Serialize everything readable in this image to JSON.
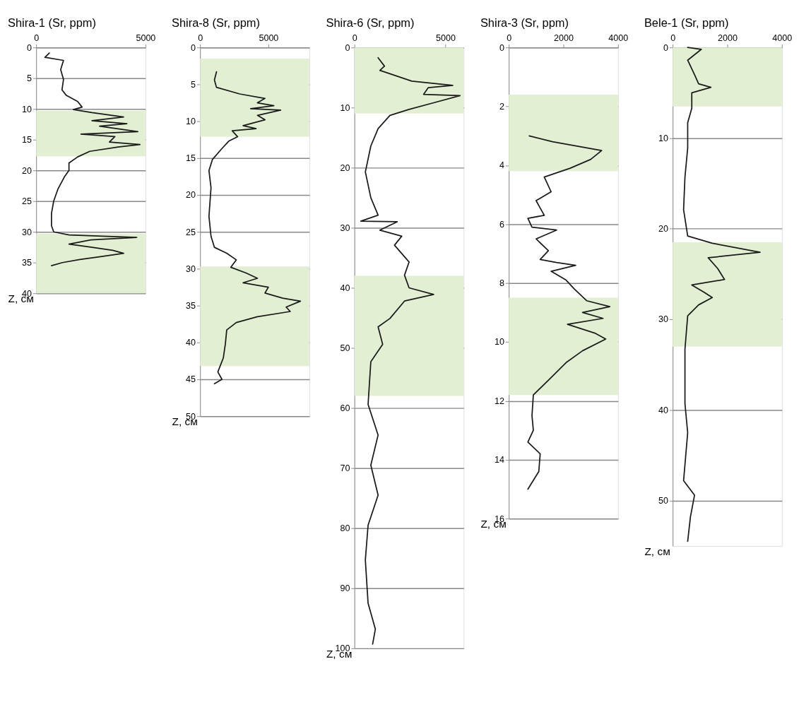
{
  "chart_data": [
    {
      "type": "line",
      "title": "Shira-1 (Sr, ppm)",
      "ylabel": "Z, см",
      "xlim": [
        0,
        5000
      ],
      "xticks": [
        0,
        5000
      ],
      "ylim": [
        40,
        0
      ],
      "yticks": [
        0,
        5,
        10,
        15,
        20,
        25,
        30,
        35,
        40
      ],
      "grid": "y",
      "bands": [
        {
          "axis": "y",
          "from": 10.3,
          "to": 17.7,
          "color": "#e2efd3"
        },
        {
          "axis": "y",
          "from": 30.3,
          "to": 40,
          "color": "#e2efd3"
        }
      ],
      "series": [
        {
          "color": "#1a1a1a",
          "x": [
            600,
            400,
            1250,
            1120,
            1250,
            1180,
            1380,
            1900,
            2100,
            1700,
            2550,
            4000,
            2550,
            4150,
            2900,
            4650,
            2050,
            3600,
            3350,
            4750,
            3750,
            2450,
            1900,
            1500,
            1500,
            1300,
            1000,
            800,
            700,
            700,
            800,
            1500,
            4600,
            2500,
            1500,
            2500,
            3500,
            4000,
            3000,
            2000,
            1200,
            700
          ],
          "values": [
            0.9,
            1.6,
            2.1,
            3.6,
            5.2,
            6.9,
            7.8,
            8.8,
            9.7,
            10.1,
            10.6,
            11.3,
            11.9,
            12.4,
            12.8,
            13.7,
            14.1,
            14.5,
            15.4,
            15.8,
            16.2,
            16.9,
            17.8,
            18.8,
            20,
            21,
            23,
            25,
            27,
            29,
            30,
            30.5,
            30.9,
            31.3,
            32,
            32.5,
            33,
            33.5,
            34,
            34.5,
            35,
            35.5
          ]
        }
      ]
    },
    {
      "type": "line",
      "title": "Shira-8 (Sr, ppm)",
      "ylabel": "Z, см",
      "xlim": [
        0,
        8000
      ],
      "xticks": [
        0,
        5000
      ],
      "ylim": [
        50,
        0
      ],
      "yticks": [
        0,
        5,
        10,
        15,
        20,
        25,
        30,
        35,
        40,
        45,
        50
      ],
      "grid": "y",
      "bands": [
        {
          "axis": "y",
          "from": 1.5,
          "to": 12.1,
          "color": "#e2efd3"
        },
        {
          "axis": "y",
          "from": 29.7,
          "to": 43.2,
          "color": "#e2efd3"
        }
      ],
      "series": [
        {
          "color": "#1a1a1a",
          "x": [
            1200,
            1050,
            1200,
            2900,
            4750,
            4200,
            5400,
            3700,
            5900,
            4200,
            4750,
            3150,
            4100,
            2350,
            2750,
            2100,
            1600,
            900,
            650,
            800,
            650,
            800,
            1050,
            1950,
            2650,
            2250,
            3400,
            4200,
            3150,
            5000,
            4750,
            6050,
            7350,
            6300,
            6600,
            4200,
            2650,
            1950,
            1850,
            1700,
            1300,
            1600,
            1050
          ],
          "values": [
            3.3,
            4.4,
            5.4,
            6.3,
            6.9,
            7.5,
            7.9,
            8.3,
            8.5,
            9.2,
            9.8,
            10.6,
            11,
            11.3,
            12.1,
            12.7,
            13.7,
            15.2,
            16.7,
            19,
            22.9,
            25.6,
            27.1,
            27.9,
            28.8,
            29.8,
            30.6,
            31.3,
            31.9,
            32.5,
            33.3,
            34,
            34.4,
            35.2,
            35.8,
            36.5,
            37.3,
            38.3,
            40.2,
            42.1,
            44,
            45,
            45.6
          ]
        }
      ]
    },
    {
      "type": "line",
      "title": "Shira-6 (Sr, ppm)",
      "ylabel": "Z, см",
      "xlim": [
        0,
        6000
      ],
      "xticks": [
        0,
        5000
      ],
      "ylim": [
        100,
        0
      ],
      "yticks": [
        0,
        10,
        20,
        30,
        40,
        50,
        60,
        70,
        80,
        90,
        100
      ],
      "grid": "y",
      "bands": [
        {
          "axis": "y",
          "from": 0,
          "to": 11,
          "color": "#e2efd3"
        },
        {
          "axis": "y",
          "from": 38,
          "to": 58,
          "color": "#e2efd3"
        }
      ],
      "series": [
        {
          "color": "#1a1a1a",
          "x": [
            1300,
            1650,
            1400,
            3150,
            5400,
            4050,
            3800,
            5800,
            4350,
            3000,
            1950,
            1300,
            900,
            600,
            900,
            1300,
            350,
            2350,
            1400,
            2600,
            2200,
            3000,
            2750,
            3000,
            4350,
            2750,
            1950,
            1300,
            1550,
            900,
            750,
            1300,
            900,
            1300,
            750,
            600,
            750,
            1150,
            1000
          ],
          "values": [
            1.7,
            3.1,
            3.8,
            5.6,
            6.3,
            6.7,
            7.8,
            8,
            9.2,
            10.3,
            11.3,
            13.5,
            16.4,
            20.7,
            25,
            27.9,
            28.9,
            29,
            30.4,
            31.4,
            32.9,
            35.7,
            37.9,
            40,
            41.1,
            42.2,
            45.1,
            46.5,
            49.4,
            52.3,
            59.4,
            64.5,
            69.5,
            74.5,
            79.5,
            85.3,
            92.5,
            96.8,
            99.3
          ]
        }
      ]
    },
    {
      "type": "line",
      "title": "Shira-3 (Sr, ppm)",
      "ylabel": "Z, см",
      "xlim": [
        0,
        4000
      ],
      "xticks": [
        0,
        2000,
        4000
      ],
      "ylim": [
        16,
        0
      ],
      "yticks": [
        0,
        2,
        4,
        6,
        8,
        10,
        12,
        14,
        16
      ],
      "grid": "y",
      "bands": [
        {
          "axis": "y",
          "from": 1.6,
          "to": 4.2,
          "color": "#e2efd3"
        },
        {
          "axis": "y",
          "from": 8.5,
          "to": 11.8,
          "color": "#e2efd3"
        }
      ],
      "series": [
        {
          "color": "#1a1a1a",
          "x": [
            750,
            1600,
            3400,
            3000,
            2250,
            1300,
            1550,
            1000,
            1300,
            700,
            850,
            1750,
            1000,
            1450,
            1150,
            1750,
            2450,
            1550,
            2100,
            2400,
            2850,
            3700,
            2700,
            3450,
            2150,
            3150,
            3550,
            2700,
            2100,
            1450,
            900,
            850,
            900,
            700,
            1150,
            1100,
            700
          ],
          "values": [
            3.0,
            3.2,
            3.5,
            3.8,
            4.1,
            4.4,
            4.9,
            5.2,
            5.7,
            5.8,
            6.1,
            6.2,
            6.5,
            6.9,
            7.2,
            7.3,
            7.4,
            7.6,
            7.9,
            8.2,
            8.6,
            8.8,
            9.0,
            9.2,
            9.4,
            9.7,
            9.9,
            10.3,
            10.7,
            11.3,
            11.8,
            12.5,
            13,
            13.4,
            13.8,
            14.4,
            15
          ]
        }
      ]
    },
    {
      "type": "line",
      "title": "Bele-1 (Sr, ppm)",
      "ylabel": "Z, см",
      "xlim": [
        0,
        4000
      ],
      "xticks": [
        0,
        2000,
        4000
      ],
      "ylim": [
        55,
        0
      ],
      "yticks": [
        0,
        10,
        20,
        30,
        40,
        50
      ],
      "grid": "y",
      "bands": [
        {
          "axis": "y",
          "from": 0,
          "to": 6.5,
          "color": "#e2efd3"
        },
        {
          "axis": "y",
          "from": 21.5,
          "to": 33,
          "color": "#e2efd3"
        }
      ],
      "series": [
        {
          "color": "#1a1a1a",
          "x": [
            550,
            1050,
            550,
            800,
            950,
            1400,
            700,
            700,
            550,
            550,
            450,
            400,
            550,
            1450,
            3200,
            1300,
            1650,
            1900,
            700,
            1150,
            1450,
            950,
            550,
            450,
            450,
            550,
            400,
            800,
            650,
            550
          ],
          "values": [
            0,
            0.2,
            1.4,
            3,
            4,
            4.4,
            5,
            6.7,
            8.3,
            11.1,
            14.3,
            17.9,
            20.8,
            21.6,
            22.6,
            23.2,
            24.4,
            25.6,
            26.2,
            27,
            27.6,
            28.4,
            29.6,
            33.3,
            39.3,
            42.5,
            47.8,
            49.4,
            51.8,
            54.5
          ]
        }
      ]
    }
  ]
}
